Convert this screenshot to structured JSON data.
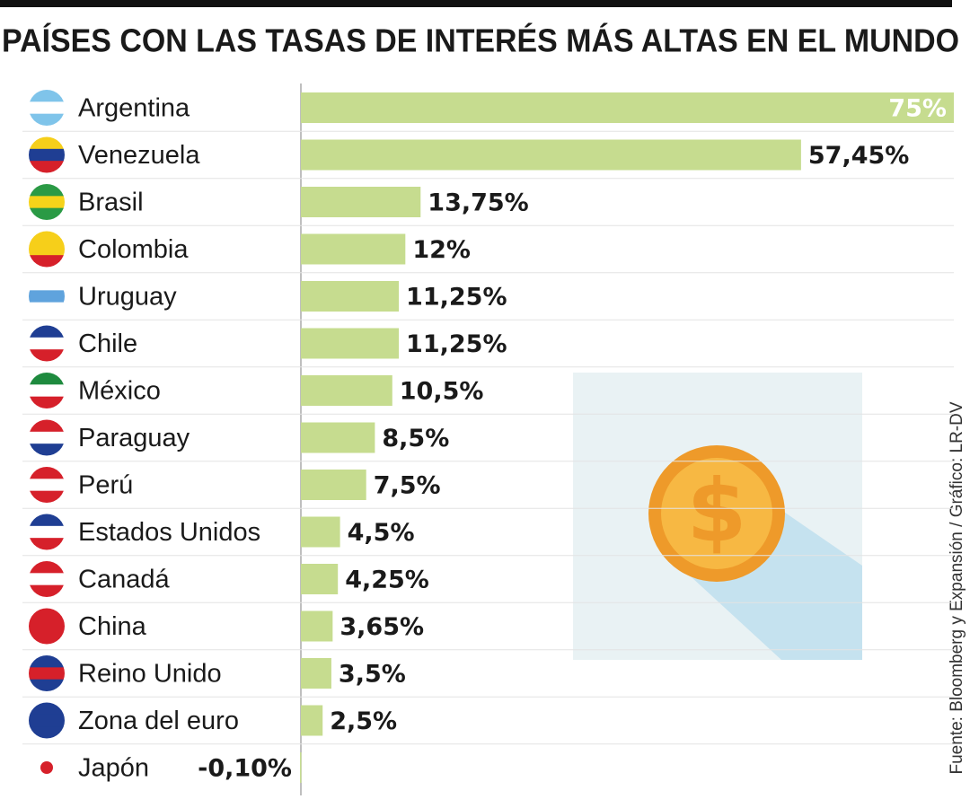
{
  "chart_data": {
    "type": "bar",
    "orientation": "horizontal",
    "title": "PAÍSES CON LAS TASAS DE INTERÉS MÁS ALTAS EN EL MUNDO",
    "source": "Fuente: Bloomberg y Expansión / Gráfico: LR-DV",
    "categories": [
      "Argentina",
      "Venezuela",
      "Brasil",
      "Colombia",
      "Uruguay",
      "Chile",
      "México",
      "Paraguay",
      "Perú",
      "Estados Unidos",
      "Canadá",
      "China",
      "Reino Unido",
      "Zona del euro",
      "Japón"
    ],
    "values": [
      75,
      57.45,
      13.75,
      12,
      11.25,
      11.25,
      10.5,
      8.5,
      7.5,
      4.5,
      4.25,
      3.65,
      3.5,
      2.5,
      -0.1
    ],
    "value_labels": [
      "75%",
      "57,45%",
      "13,75%",
      "12%",
      "11,25%",
      "11,25%",
      "10,5%",
      "8,5%",
      "7,5%",
      "4,5%",
      "4,25%",
      "3,65%",
      "3,5%",
      "2,5%",
      "-0,10%"
    ],
    "color": "#c6dc8f"
  }
}
